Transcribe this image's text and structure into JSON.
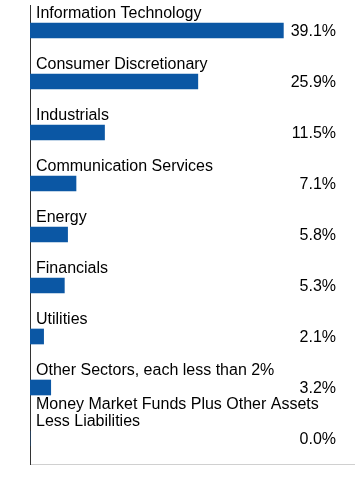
{
  "chart_data": {
    "type": "bar",
    "orientation": "horizontal",
    "categories": [
      "Information Technology",
      "Consumer Discretionary",
      "Industrials",
      "Communication Services",
      "Energy",
      "Financials",
      "Utilities",
      "Other Sectors, each less than 2%",
      "Money Market Funds Plus Other Assets Less Liabilities"
    ],
    "values": [
      39.1,
      25.9,
      11.5,
      7.1,
      5.8,
      5.3,
      2.1,
      3.2,
      0.0
    ],
    "value_labels": [
      "39.1%",
      "25.9%",
      "11.5%",
      "7.1%",
      "5.8%",
      "5.3%",
      "2.1%",
      "3.2%",
      "0.0%"
    ],
    "data_labels": true,
    "color": "#0b57a4",
    "xlim": [
      0,
      50
    ],
    "grid": false,
    "tick_labels": false
  }
}
